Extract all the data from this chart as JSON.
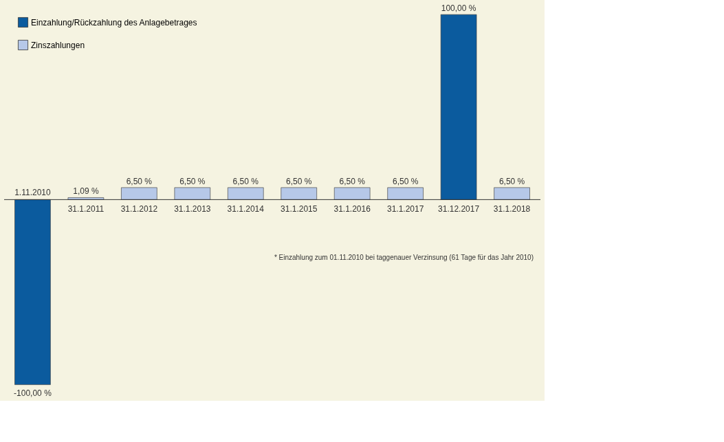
{
  "chart_data": {
    "type": "bar",
    "categories": [
      "1.11.2010",
      "31.1.2011",
      "31.1.2012",
      "31.1.2013",
      "31.1.2014",
      "31.1.2015",
      "31.1.2016",
      "31.1.2017",
      "31.12.2017",
      "31.1.2018"
    ],
    "series": [
      {
        "name": "Einzahlung/Rückzahlung des Anlagebetrages",
        "color": "#0b5b9e",
        "values": [
          -100,
          null,
          null,
          null,
          null,
          null,
          null,
          null,
          100,
          null
        ],
        "value_labels": [
          "-100,00 %",
          null,
          null,
          null,
          null,
          null,
          null,
          null,
          "100,00 %",
          null
        ]
      },
      {
        "name": "Zinszahlungen",
        "color": "#b6c8e8",
        "values": [
          null,
          1.09,
          6.5,
          6.5,
          6.5,
          6.5,
          6.5,
          6.5,
          null,
          6.5
        ],
        "value_labels": [
          null,
          "1,09 %",
          "6,50 %",
          "6,50 %",
          "6,50 %",
          "6,50 %",
          "6,50 %",
          "6,50 %",
          null,
          "6,50 %"
        ]
      }
    ],
    "legend": "top left",
    "annotations": [
      "* Einzahlung zum 01.11.2010 bei taggenauer Verzinsung (61 Tage für das Jahr 2010)"
    ]
  }
}
